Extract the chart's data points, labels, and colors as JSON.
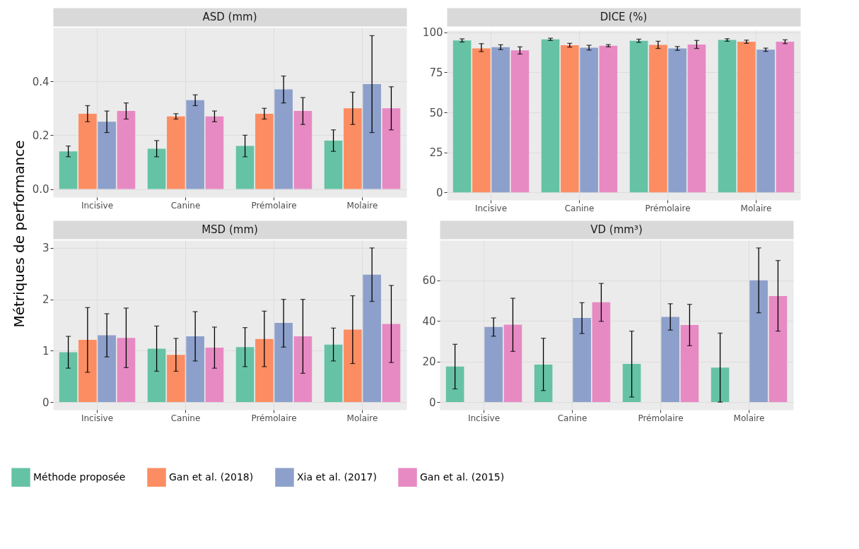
{
  "chart_data": [
    {
      "type": "bar",
      "title": "ASD (mm)",
      "ylabel": "Métriques de performance",
      "categories": [
        "Incisive",
        "Canine",
        "Prémolaire",
        "Molaire"
      ],
      "ylim": [
        -0.03,
        0.6
      ],
      "yticks": [
        {
          "value": 0,
          "label": "0.0"
        },
        0.2,
        0.4
      ],
      "grid": true,
      "legend": "bottom",
      "series": [
        {
          "name": "Méthode proposée",
          "color": "#66c2a5",
          "values": [
            0.14,
            0.15,
            0.16,
            0.18
          ],
          "errors": [
            [
              0.12,
              0.16
            ],
            [
              0.12,
              0.18
            ],
            [
              0.12,
              0.2
            ],
            [
              0.14,
              0.22
            ]
          ]
        },
        {
          "name": "Gan et al. (2018)",
          "color": "#fc8d62",
          "values": [
            0.28,
            0.27,
            0.28,
            0.3
          ],
          "errors": [
            [
              0.25,
              0.31
            ],
            [
              0.26,
              0.28
            ],
            [
              0.26,
              0.3
            ],
            [
              0.24,
              0.36
            ]
          ]
        },
        {
          "name": "Xia et al. (2017)",
          "color": "#8da0cb",
          "values": [
            0.25,
            0.33,
            0.37,
            0.39
          ],
          "errors": [
            [
              0.21,
              0.29
            ],
            [
              0.31,
              0.35
            ],
            [
              0.32,
              0.42
            ],
            [
              0.21,
              0.57
            ]
          ]
        },
        {
          "name": "Gan et al. (2015)",
          "color": "#e78ac3",
          "values": [
            0.29,
            0.27,
            0.29,
            0.3
          ],
          "errors": [
            [
              0.26,
              0.32
            ],
            [
              0.25,
              0.29
            ],
            [
              0.24,
              0.34
            ],
            [
              0.22,
              0.38
            ]
          ]
        }
      ]
    },
    {
      "type": "bar",
      "title": "DICE (%)",
      "categories": [
        "Incisive",
        "Canine",
        "Prémolaire",
        "Molaire"
      ],
      "ylim": [
        -4.8,
        101.3
      ],
      "yticks": [
        0,
        25,
        50,
        75,
        100
      ],
      "grid": true,
      "series": [
        {
          "color": "#66c2a5",
          "values": [
            95,
            95.7,
            94.8,
            95.3
          ],
          "errors": [
            1,
            0.7,
            1,
            0.8
          ]
        },
        {
          "color": "#fc8d62",
          "values": [
            90,
            92,
            92.2,
            94.2
          ],
          "errors": [
            [
              88,
              93
            ],
            1.2,
            [
              90,
              94.5
            ],
            1
          ]
        },
        {
          "color": "#8da0cb",
          "values": [
            90.8,
            90.5,
            90,
            89.2
          ],
          "errors": [
            1.5,
            1.5,
            1.2,
            1
          ]
        },
        {
          "color": "#e78ac3",
          "values": [
            88.8,
            91.7,
            92.5,
            94.2
          ],
          "errors": [
            [
              86.5,
              91
            ],
            0.7,
            [
              90,
              95
            ],
            1.2
          ]
        }
      ]
    },
    {
      "type": "bar",
      "title": "MSD (mm)",
      "categories": [
        "Incisive",
        "Canine",
        "Prémolaire",
        "Molaire"
      ],
      "ylim": [
        -0.15,
        3.15
      ],
      "yticks": [
        0,
        1,
        2,
        3
      ],
      "grid": true,
      "series": [
        {
          "color": "#66c2a5",
          "values": [
            0.97,
            1.04,
            1.07,
            1.12
          ],
          "errors": [
            [
              0.66,
              1.28
            ],
            [
              0.6,
              1.48
            ],
            [
              0.69,
              1.45
            ],
            [
              0.8,
              1.44
            ]
          ]
        },
        {
          "color": "#fc8d62",
          "values": [
            1.21,
            0.92,
            1.23,
            1.41
          ],
          "errors": [
            [
              0.58,
              1.84
            ],
            [
              0.6,
              1.24
            ],
            [
              0.69,
              1.77
            ],
            [
              0.75,
              2.07
            ]
          ]
        },
        {
          "color": "#8da0cb",
          "values": [
            1.3,
            1.28,
            1.54,
            2.48
          ],
          "errors": [
            [
              0.88,
              1.72
            ],
            [
              0.8,
              1.76
            ],
            [
              1.07,
              2.0
            ],
            [
              1.96,
              3.0
            ]
          ]
        },
        {
          "color": "#e78ac3",
          "values": [
            1.25,
            1.06,
            1.28,
            1.52
          ],
          "errors": [
            [
              0.67,
              1.83
            ],
            [
              0.66,
              1.46
            ],
            [
              0.56,
              2.0
            ],
            [
              0.77,
              2.27
            ]
          ]
        }
      ]
    },
    {
      "type": "bar",
      "title": "VD (mm³)",
      "categories": [
        "Incisive",
        "Canine",
        "Prémolaire",
        "Molaire"
      ],
      "ylim": [
        -3.8,
        79.8
      ],
      "yticks": [
        0,
        20,
        40,
        60
      ],
      "grid": true,
      "series": [
        {
          "color": "#66c2a5",
          "values": [
            17.5,
            18.5,
            18.8,
            17
          ],
          "errors": [
            [
              6.5,
              28.5
            ],
            [
              5.7,
              31.5
            ],
            [
              2.5,
              35
            ],
            [
              0,
              34
            ]
          ]
        },
        {
          "color": "#fc8d62",
          "values": [
            null,
            null,
            null,
            null
          ]
        },
        {
          "color": "#8da0cb",
          "values": [
            37,
            41.5,
            42,
            60
          ],
          "errors": [
            [
              32.5,
              41.5
            ],
            [
              33.8,
              49
            ],
            [
              35.5,
              48.5
            ],
            [
              44,
              76
            ]
          ]
        },
        {
          "color": "#e78ac3",
          "values": [
            38.2,
            49.2,
            38,
            52.3
          ],
          "errors": [
            [
              25,
              51.2
            ],
            [
              39.8,
              58.5
            ],
            [
              27.8,
              48.2
            ],
            [
              35,
              69.8
            ]
          ]
        }
      ]
    }
  ]
}
